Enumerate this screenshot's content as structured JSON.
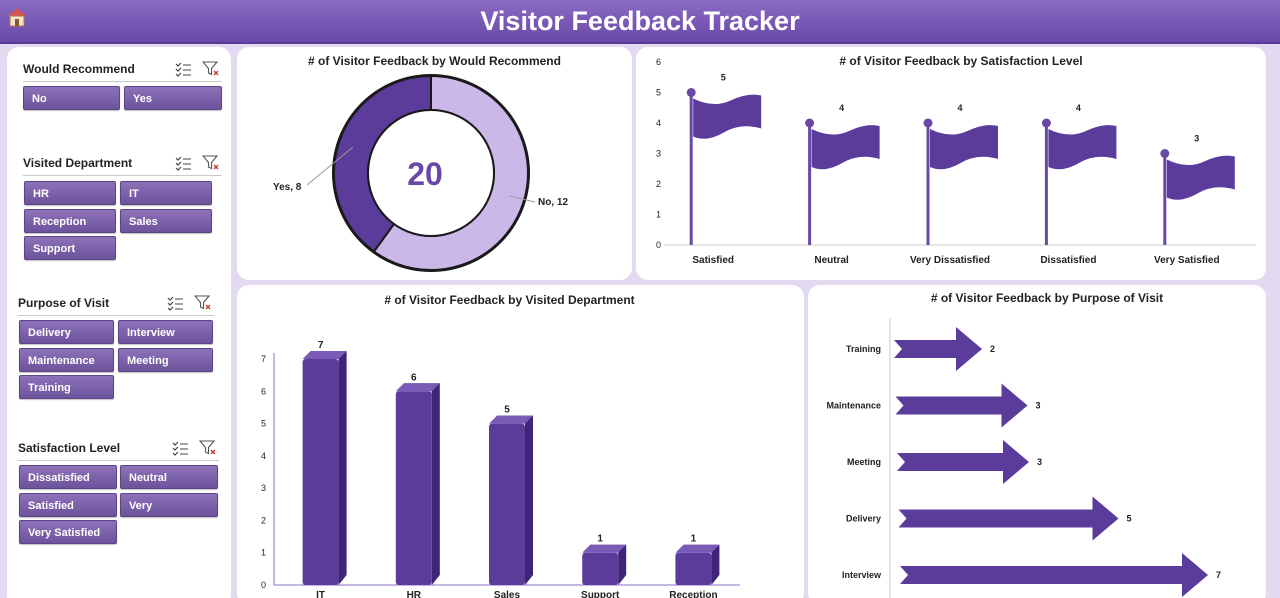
{
  "header": {
    "title": "Visitor Feedback Tracker"
  },
  "slicers": [
    {
      "title": "Would Recommend",
      "items": [
        "No",
        "Yes"
      ]
    },
    {
      "title": "Visited Department",
      "items": [
        "HR",
        "IT",
        "Reception",
        "Sales",
        "Support"
      ]
    },
    {
      "title": "Purpose of Visit",
      "items": [
        "Delivery",
        "Interview",
        "Maintenance",
        "Meeting",
        "Training"
      ]
    },
    {
      "title": "Satisfaction Level",
      "items": [
        "Dissatisfied",
        "Neutral",
        "Satisfied",
        "Very Dissatisfied",
        "Very Satisfied"
      ]
    }
  ],
  "colors": {
    "accent": "#6a48a8",
    "dark_purple": "#5b3c9b",
    "light_purple": "#cbb8e8"
  },
  "chart_data": [
    {
      "type": "pie",
      "title": "# of Visitor Feedback by Would Recommend",
      "center_value": "20",
      "labels": [
        "No",
        "Yes"
      ],
      "values": [
        12,
        8
      ],
      "data_labels": [
        "No, 12",
        "Yes, 8"
      ]
    },
    {
      "type": "bar",
      "title": "# of Visitor Feedback by Satisfaction Level",
      "categories": [
        "Satisfied",
        "Neutral",
        "Very Dissatisfied",
        "Dissatisfied",
        "Very Satisfied"
      ],
      "values": [
        5,
        4,
        4,
        4,
        3
      ],
      "ylim": [
        0,
        6
      ],
      "yticks": [
        "0",
        "1",
        "2",
        "3",
        "4",
        "5",
        "6"
      ]
    },
    {
      "type": "bar",
      "title": "# of Visitor Feedback by Visited Department",
      "categories": [
        "IT",
        "HR",
        "Sales",
        "Support",
        "Reception"
      ],
      "values": [
        7,
        6,
        5,
        1,
        1
      ],
      "ylim": [
        0,
        7
      ],
      "yticks": [
        "0",
        "1",
        "2",
        "3",
        "4",
        "5",
        "6",
        "7"
      ]
    },
    {
      "type": "bar",
      "title": "# of Visitor Feedback by Purpose of Visit",
      "categories": [
        "Training",
        "Maintenance",
        "Meeting",
        "Delivery",
        "Interview"
      ],
      "values": [
        2,
        3,
        3,
        5,
        7
      ]
    }
  ]
}
